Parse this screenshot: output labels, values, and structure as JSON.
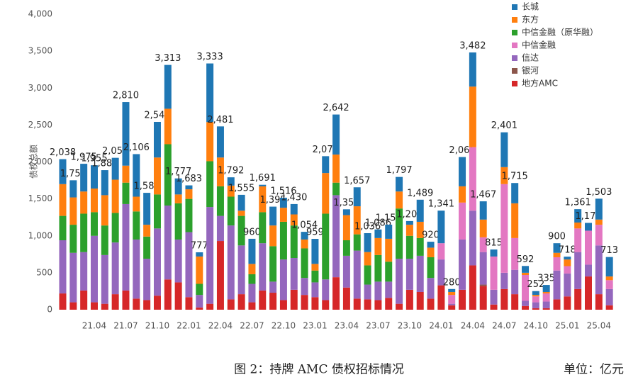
{
  "chart_data": {
    "type": "stacked_bar",
    "y_label": "债权总额",
    "caption": "图 2：持牌 AMC 债权招标情况",
    "unit_note": "单位：亿元",
    "ylim": [
      0,
      4000
    ],
    "yticks": [
      0,
      500,
      {
        "value": 1000,
        "label": "1,000"
      },
      {
        "value": 1500,
        "label": "1,500"
      },
      {
        "value": 2000,
        "label": "2,000"
      },
      {
        "value": 2500,
        "label": "2,500"
      },
      {
        "value": 3000,
        "label": "3,000"
      },
      {
        "value": 3500,
        "label": "3,500"
      },
      {
        "value": 4000,
        "label": "4,000"
      }
    ],
    "grid": false,
    "legend": "top-right",
    "categories": [
      null,
      null,
      null,
      "21.04",
      null,
      null,
      "21.07",
      null,
      null,
      "21.10",
      null,
      null,
      "22.01",
      null,
      null,
      "22.04",
      null,
      null,
      "22.07",
      null,
      null,
      "22.10",
      null,
      null,
      "23.01",
      null,
      null,
      "23.04",
      null,
      null,
      "23.07",
      null,
      null,
      "23.10",
      null,
      null,
      "24.01",
      null,
      null,
      "24.04",
      null,
      null,
      "24.07",
      null,
      null,
      "24.10",
      null,
      null,
      "25.01",
      null,
      null,
      "25.04",
      null
    ],
    "series": [
      {
        "name": "地方AMC",
        "color": "#d62728",
        "values": [
          220,
          100,
          260,
          100,
          80,
          210,
          260,
          150,
          130,
          190,
          410,
          370,
          170,
          30,
          80,
          930,
          140,
          210,
          100,
          260,
          230,
          130,
          270,
          200,
          170,
          130,
          440,
          300,
          150,
          140,
          130,
          160,
          80,
          270,
          240,
          150,
          330,
          60,
          270,
          600,
          320,
          70,
          280,
          210,
          50,
          20,
          20,
          140,
          180,
          280,
          450,
          210,
          60
        ]
      },
      {
        "name": "银河",
        "color": "#8c564b",
        "values": [
          0,
          0,
          0,
          0,
          0,
          0,
          0,
          0,
          0,
          0,
          0,
          0,
          0,
          0,
          0,
          0,
          0,
          0,
          0,
          0,
          0,
          0,
          0,
          0,
          0,
          0,
          0,
          0,
          0,
          0,
          0,
          0,
          0,
          0,
          0,
          0,
          0,
          0,
          0,
          0,
          20,
          0,
          0,
          0,
          0,
          0,
          0,
          0,
          0,
          0,
          0,
          0,
          0
        ]
      },
      {
        "name": "信达",
        "color": "#9467bd",
        "values": [
          720,
          670,
          520,
          900,
          660,
          700,
          1170,
          800,
          560,
          910,
          1000,
          580,
          880,
          170,
          1310,
          340,
          1000,
          660,
          250,
          640,
          150,
          550,
          430,
          230,
          200,
          280,
          1110,
          430,
          650,
          200,
          250,
          220,
          610,
          420,
          490,
          280,
          350,
          20,
          680,
          740,
          440,
          200,
          220,
          330,
          70,
          80,
          90,
          390,
          310,
          500,
          160,
          660,
          220
        ]
      },
      {
        "name": "中信金融",
        "color": "#e377c2",
        "values": [
          0,
          0,
          0,
          0,
          0,
          0,
          0,
          0,
          0,
          0,
          0,
          0,
          0,
          0,
          0,
          0,
          0,
          0,
          0,
          0,
          0,
          0,
          0,
          0,
          0,
          0,
          0,
          0,
          0,
          0,
          0,
          0,
          0,
          0,
          0,
          0,
          220,
          120,
          500,
          860,
          200,
          450,
          1200,
          430,
          350,
          80,
          110,
          180,
          100,
          320,
          460,
          280,
          120
        ]
      },
      {
        "name": "中信金融（原华融）",
        "color": "#2ca02c",
        "values": [
          330,
          380,
          520,
          320,
          400,
          400,
          290,
          380,
          300,
          460,
          830,
          490,
          450,
          150,
          620,
          400,
          390,
          400,
          130,
          420,
          480,
          510,
          440,
          400,
          160,
          890,
          170,
          210,
          220,
          260,
          360,
          270,
          680,
          310,
          240,
          280,
          0,
          0,
          0,
          0,
          0,
          0,
          0,
          0,
          0,
          0,
          0,
          0,
          0,
          0,
          0,
          0,
          0
        ]
      },
      {
        "name": "东方",
        "color": "#ff7f0e",
        "values": [
          430,
          370,
          300,
          320,
          410,
          450,
          230,
          200,
          160,
          500,
          480,
          120,
          130,
          370,
          530,
          390,
          150,
          70,
          140,
          350,
          280,
          190,
          150,
          120,
          90,
          550,
          380,
          340,
          380,
          180,
          230,
          310,
          230,
          150,
          220,
          130,
          0,
          40,
          220,
          820,
          240,
          0,
          230,
          470,
          30,
          20,
          20,
          60,
          90,
          80,
          0,
          70,
          50
        ]
      },
      {
        "name": "长城",
        "color": "#1f77b4",
        "values": [
          338,
          232,
          375,
          315,
          339,
          296,
          860,
          576,
          432,
          482,
          593,
          217,
          53,
          57,
          793,
          421,
          112,
          215,
          340,
          21,
          255,
          136,
          140,
          104,
          339,
          228,
          542,
          79,
          257,
          256,
          116,
          191,
          197,
          50,
          299,
          80,
          441,
          40,
          396,
          462,
          247,
          95,
          471,
          275,
          92,
          52,
          95,
          130,
          38,
          181,
          105,
          283,
          263
        ]
      }
    ],
    "totals": [
      2038,
      1752,
      1975,
      1955,
      1889,
      2056,
      2810,
      2106,
      1582,
      2542,
      3313,
      1777,
      1683,
      777,
      3333,
      2481,
      1792,
      1555,
      960,
      1691,
      1395,
      1516,
      1430,
      1054,
      959,
      2078,
      2642,
      1359,
      1657,
      1036,
      1086,
      1151,
      1797,
      1200,
      1489,
      920,
      1341,
      280,
      2066,
      3482,
      1467,
      815,
      2401,
      1715,
      592,
      252,
      335,
      900,
      718,
      1361,
      1175,
      1503,
      713
    ],
    "total_labels": [
      "2,038",
      "1,752",
      "1,975",
      "1,955",
      "1,889",
      "2,056",
      "2,810",
      "2,106",
      "1,582",
      "2,542",
      "3,313",
      "1,777",
      "1,683",
      "777",
      "3,333",
      "2,481",
      "1,792",
      "1,555",
      "960",
      "1,691",
      "1,395",
      "1,516",
      "1,430",
      "1,054",
      "959",
      "2,078",
      "2,642",
      "1,359",
      "1,657",
      "1,036",
      "1,086",
      "1,151",
      "1,797",
      "1,200",
      "1,489",
      "920",
      "1,341",
      "280",
      "2,066",
      "3,482",
      "1,467",
      "815",
      "2,401",
      "1,715",
      "592",
      "252",
      "335",
      "900",
      "718",
      "1,361",
      "1,175",
      "1,503",
      "713"
    ]
  }
}
